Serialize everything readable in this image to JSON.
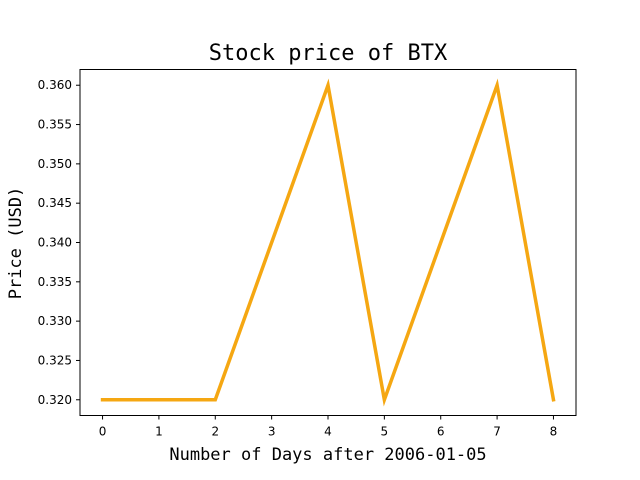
{
  "chart_data": {
    "type": "line",
    "title": "Stock price of BTX",
    "xlabel": "Number of Days after 2006-01-05",
    "ylabel": "Price (USD)",
    "x": [
      0,
      1,
      2,
      3,
      4,
      5,
      6,
      7,
      8
    ],
    "series": [
      {
        "values": [
          0.32,
          0.32,
          0.32,
          0.34,
          0.36,
          0.32,
          0.34,
          0.36,
          0.32
        ],
        "color": "#f5a712"
      }
    ],
    "xticks": [
      "0",
      "1",
      "2",
      "3",
      "4",
      "5",
      "6",
      "7",
      "8"
    ],
    "yticks": [
      "0.320",
      "0.325",
      "0.330",
      "0.335",
      "0.340",
      "0.345",
      "0.350",
      "0.355",
      "0.360"
    ],
    "xlim": [
      -0.4,
      8.4
    ],
    "ylim": [
      0.318,
      0.362
    ],
    "grid": false,
    "legend": false
  }
}
